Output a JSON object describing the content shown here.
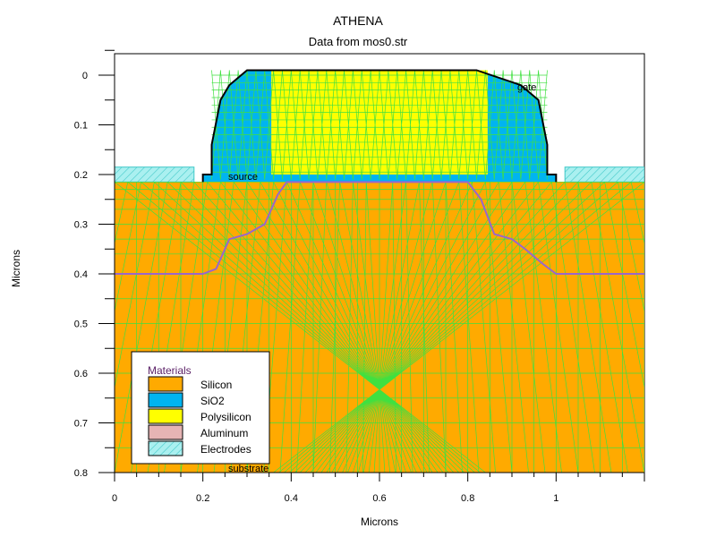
{
  "title": "ATHENA",
  "subtitle": "Data from mos0.str",
  "xlabel": "Microns",
  "ylabel": "Microns",
  "labels": {
    "source": "source",
    "gate": "gate",
    "substrate": "substrate"
  },
  "legend": {
    "title": "Materials",
    "items": [
      {
        "name": "Silicon",
        "color": "#ffaa00"
      },
      {
        "name": "SiO2",
        "color": "#00b4f0"
      },
      {
        "name": "Polysilicon",
        "color": "#ffff00"
      },
      {
        "name": "Aluminum",
        "color": "#e6b4b4"
      },
      {
        "name": "Electrodes",
        "color": "#aaf0f0",
        "pattern": "hatched"
      }
    ]
  },
  "chart_data": {
    "type": "structure-plot",
    "title": "ATHENA",
    "subtitle": "Data from mos0.str",
    "xlabel": "Microns",
    "ylabel": "Microns",
    "xlim": [
      0,
      1.2
    ],
    "ylim": [
      0,
      0.8
    ],
    "y_inverted": true,
    "x_ticks": [
      "0",
      "0.2",
      "0.4",
      "0.6",
      "0.8",
      "1"
    ],
    "y_ticks": [
      "0",
      "0.1",
      "0.2",
      "0.3",
      "0.4",
      "0.5",
      "0.6",
      "0.7",
      "0.8"
    ],
    "colors": {
      "mesh": "#40e040",
      "junction": "#9966cc"
    },
    "regions": {
      "silicon_top": 0.215,
      "gate_oxide": {
        "x": [
          0.36,
          0.84
        ],
        "y": [
          0,
          0.21
        ]
      },
      "polysilicon": {
        "x": [
          0.355,
          0.845
        ],
        "y": [
          -0.01,
          0.2
        ]
      },
      "spacer_outer": [
        [
          0.2,
          0.215
        ],
        [
          0.2,
          0.2
        ],
        [
          0.22,
          0.2
        ],
        [
          0.22,
          0.14
        ],
        [
          0.24,
          0.05
        ],
        [
          0.26,
          0.02
        ],
        [
          0.3,
          -0.01
        ],
        [
          0.82,
          -0.01
        ],
        [
          0.92,
          0.02
        ],
        [
          0.96,
          0.05
        ],
        [
          0.98,
          0.14
        ],
        [
          0.98,
          0.2
        ],
        [
          1.0,
          0.2
        ],
        [
          1.0,
          0.215
        ]
      ],
      "electrode_left": {
        "x": [
          0,
          0.18
        ],
        "y": [
          0.185,
          0.215
        ]
      },
      "electrode_right": {
        "x": [
          1.02,
          1.2
        ],
        "y": [
          0.185,
          0.215
        ]
      }
    },
    "junction": [
      [
        0,
        0.4
      ],
      [
        0.2,
        0.4
      ],
      [
        0.23,
        0.39
      ],
      [
        0.26,
        0.33
      ],
      [
        0.3,
        0.32
      ],
      [
        0.34,
        0.3
      ],
      [
        0.37,
        0.24
      ],
      [
        0.39,
        0.215
      ],
      [
        0.8,
        0.215
      ],
      [
        0.83,
        0.25
      ],
      [
        0.86,
        0.32
      ],
      [
        0.9,
        0.33
      ],
      [
        0.93,
        0.35
      ],
      [
        0.97,
        0.38
      ],
      [
        1.0,
        0.4
      ],
      [
        1.2,
        0.4
      ]
    ],
    "annotations": [
      {
        "text": "source",
        "x": 0.26,
        "y": 0.205
      },
      {
        "text": "gate",
        "x": 0.91,
        "y": 0.025
      },
      {
        "text": "substrate",
        "x": 0.26,
        "y": 0.8
      }
    ]
  }
}
